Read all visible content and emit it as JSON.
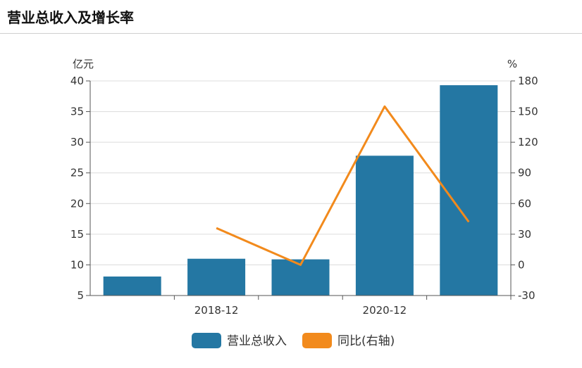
{
  "page": {
    "title": "营业总收入及增长率"
  },
  "chart_data": {
    "type": "bar",
    "title": "营业总收入及增长率",
    "categories": [
      "",
      "2018-12",
      "",
      "2020-12",
      ""
    ],
    "x_tick_labels": [
      "2018-12",
      "2020-12"
    ],
    "y_left": {
      "unit_label": "亿元",
      "min": 5,
      "max": 40,
      "ticks": [
        5,
        10,
        15,
        20,
        25,
        30,
        35,
        40
      ]
    },
    "y_right": {
      "unit_label": "%",
      "min": -30,
      "max": 180,
      "ticks": [
        -30,
        0,
        30,
        60,
        90,
        120,
        150,
        180
      ]
    },
    "grid": true,
    "legend_position": "bottom",
    "series": [
      {
        "name": "营业总收入",
        "type": "bar",
        "axis": "left",
        "color": "#2477a3",
        "values": [
          8.1,
          11.0,
          10.9,
          27.8,
          39.3
        ]
      },
      {
        "name": "同比(右轴)",
        "type": "line",
        "axis": "right",
        "color": "#f28a1c",
        "values": [
          null,
          36,
          0,
          155,
          42
        ]
      }
    ]
  }
}
